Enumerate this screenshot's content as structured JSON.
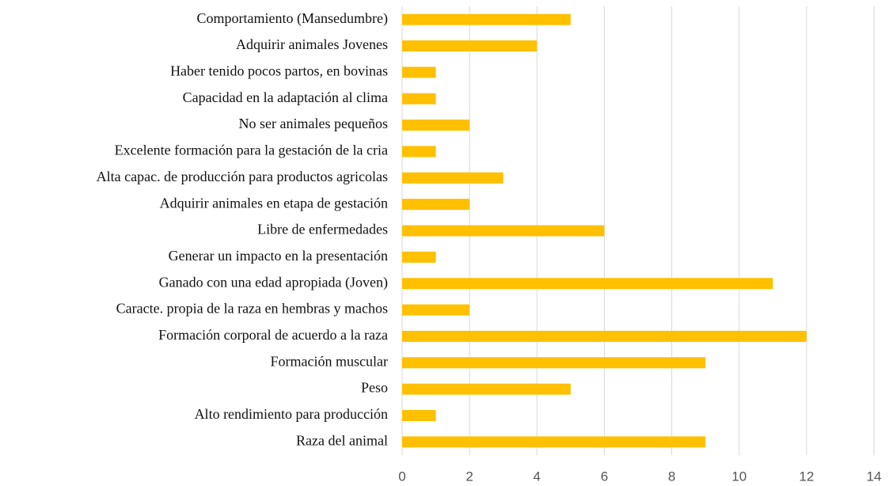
{
  "chart_data": {
    "type": "bar",
    "orientation": "horizontal",
    "categories": [
      "Comportamiento (Mansedumbre)",
      "Adquirir animales Jovenes",
      "Haber tenido pocos partos, en bovinas",
      "Capacidad en la adaptación al clima",
      "No ser animales pequeños",
      "Excelente formación para la gestación de la cria",
      "Alta capac. de producción para productos agricolas",
      "Adquirir animales en etapa de gestación",
      "Libre de enfermedades",
      "Generar un impacto en la presentación",
      "Ganado con una edad apropiada (Joven)",
      "Caracte. propia de la raza en hembras y machos",
      "Formación corporal de acuerdo a la raza",
      "Formación muscular",
      "Peso",
      "Alto rendimiento para producción",
      "Raza del animal"
    ],
    "values": [
      5,
      4,
      1,
      1,
      2,
      1,
      3,
      2,
      6,
      1,
      11,
      2,
      12,
      9,
      5,
      1,
      9
    ],
    "color": "#ffc000",
    "xlim": [
      0,
      14
    ],
    "xticks": [
      0,
      2,
      4,
      6,
      8,
      10,
      12,
      14
    ],
    "grid": true
  }
}
